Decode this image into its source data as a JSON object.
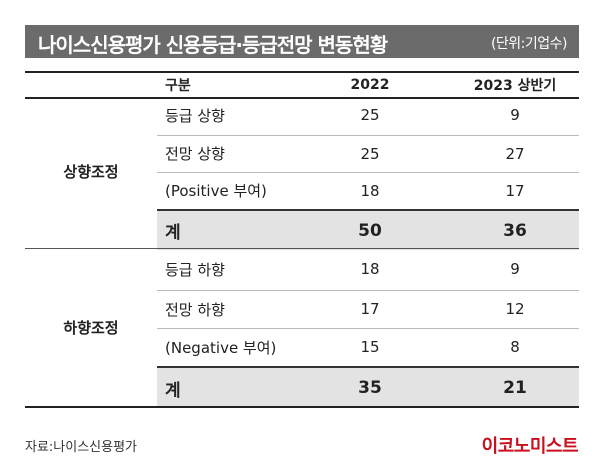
{
  "chart_data": {
    "type": "table",
    "title": "나이스신용평가 신용등급·등급전망 변동현황",
    "unit": "(단위:기업수)",
    "columns": [
      "구분",
      "2022",
      "2023 상반기"
    ],
    "groups": [
      {
        "name": "상향조정",
        "rows": [
          {
            "label": "등급 상향",
            "v2022": "25",
            "v2023": "9"
          },
          {
            "label": "전망 상향",
            "v2022": "25",
            "v2023": "27"
          },
          {
            "label": "(Positive 부여)",
            "v2022": "18",
            "v2023": "17"
          },
          {
            "label": "계",
            "v2022": "50",
            "v2023": "36"
          }
        ]
      },
      {
        "name": "하향조정",
        "rows": [
          {
            "label": "등급 하향",
            "v2022": "18",
            "v2023": "9"
          },
          {
            "label": "전망 하향",
            "v2022": "17",
            "v2023": "12"
          },
          {
            "label": "(Negative 부여)",
            "v2022": "15",
            "v2023": "8"
          },
          {
            "label": "계",
            "v2022": "35",
            "v2023": "21"
          }
        ]
      }
    ]
  },
  "source": "자료:나이스신용평가",
  "logo": "이코노미스트",
  "colors": {
    "title_bg": "#6b6b6b",
    "shade": "#e3e3e3",
    "logo": "#c8101e"
  }
}
